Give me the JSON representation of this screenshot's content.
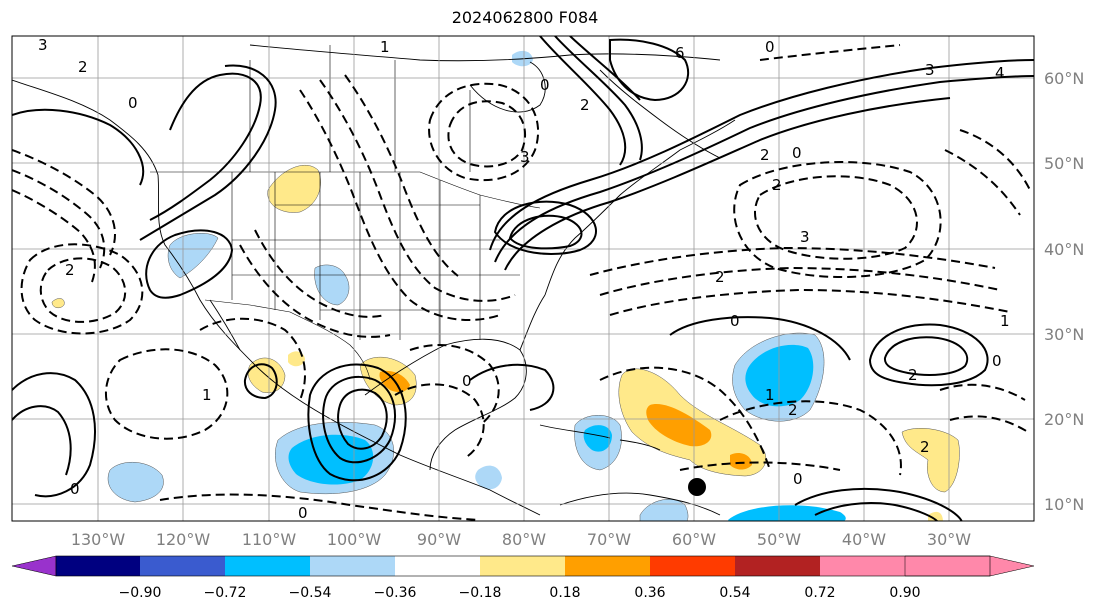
{
  "title": "2024062800 F084",
  "lon_labels": [
    "130°W",
    "120°W",
    "110°W",
    "100°W",
    "90°W",
    "80°W",
    "70°W",
    "60°W",
    "50°W",
    "40°W",
    "30°W"
  ],
  "lat_labels": [
    "60°N",
    "50°N",
    "40°N",
    "30°N",
    "20°N",
    "10°N"
  ],
  "colorbar": {
    "colors": [
      "#9932cc",
      "#000080",
      "#3a5bcf",
      "#00bfff",
      "#add8f7",
      "#ffffff",
      "#ffe98a",
      "#ff9f00",
      "#ff3b00",
      "#b22222",
      "#ff88aa"
    ],
    "ticks": [
      "−0.90",
      "−0.72",
      "−0.54",
      "−0.36",
      "−0.18",
      "0.18",
      "0.36",
      "0.54",
      "0.72",
      "0.90"
    ]
  },
  "contour_labels": [
    "3",
    "2",
    "0",
    "1",
    "0",
    "2",
    "3",
    "6",
    "0",
    "3",
    "4",
    "2",
    "0",
    "2",
    "3",
    "2",
    "0",
    "1",
    "0",
    "2",
    "1",
    "2",
    "0",
    "2",
    "0",
    "0",
    "1",
    "0",
    "2"
  ]
}
